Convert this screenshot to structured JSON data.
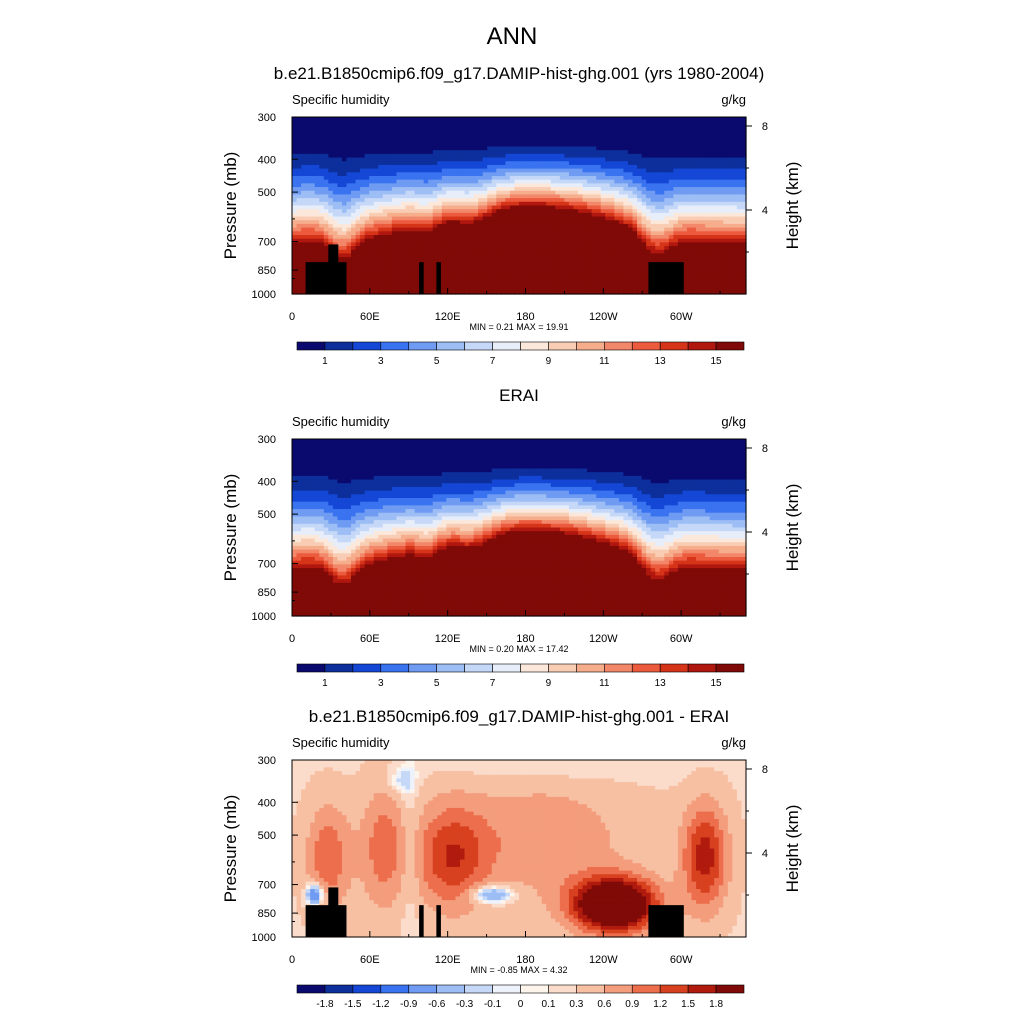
{
  "page_title": "ANN",
  "palettes": {
    "humidity": [
      "#0a0a6e",
      "#0d2f9c",
      "#1447d6",
      "#3a73f0",
      "#6f9bf2",
      "#9dbdf5",
      "#c6d8f8",
      "#e7eefa",
      "#fbe8da",
      "#f8cdb3",
      "#f6ad8c",
      "#f2876a",
      "#ec5b3e",
      "#d53419",
      "#b0170f",
      "#7f0a07"
    ],
    "difference": [
      "#0a0a6e",
      "#0d2f9c",
      "#1447d6",
      "#3a73f0",
      "#6f9bf2",
      "#9dbdf5",
      "#c6d8f8",
      "#eef2fa",
      "#fdf4ec",
      "#fbdccb",
      "#f7c0a3",
      "#f49d7d",
      "#ec6e4c",
      "#d8411f",
      "#b01b0e",
      "#7f0a07"
    ]
  },
  "chart_data": [
    {
      "type": "heatmap",
      "title": "b.e21.B1850cmip6.f09_g17.DAMIP-hist-ghg.001 (yrs 1980-2004)",
      "left_string": "Specific humidity",
      "right_string": "g/kg",
      "ylabel": "Pressure (mb)",
      "y2label": "Height (km)",
      "x_ticks": [
        "0",
        "60E",
        "120E",
        "180",
        "120W",
        "60W"
      ],
      "y_ticks": [
        "300",
        "400",
        "500",
        "700",
        "850",
        "1000"
      ],
      "y2_ticks": [
        "8",
        "4"
      ],
      "stats": "MIN =   0.21  MAX =  19.91",
      "colorbar_labels": [
        "1",
        "3",
        "5",
        "7",
        "9",
        "11",
        "13",
        "15"
      ],
      "palette": "humidity",
      "field": "humidity",
      "has_mask": true
    },
    {
      "type": "heatmap",
      "title": "ERAI",
      "left_string": "Specific humidity",
      "right_string": "g/kg",
      "ylabel": "Pressure (mb)",
      "y2label": "Height (km)",
      "x_ticks": [
        "0",
        "60E",
        "120E",
        "180",
        "120W",
        "60W"
      ],
      "y_ticks": [
        "300",
        "400",
        "500",
        "700",
        "850",
        "1000"
      ],
      "y2_ticks": [
        "8",
        "4"
      ],
      "stats": "MIN =   0.20  MAX =  17.42",
      "colorbar_labels": [
        "1",
        "3",
        "5",
        "7",
        "9",
        "11",
        "13",
        "15"
      ],
      "palette": "humidity",
      "field": "humidity",
      "has_mask": false
    },
    {
      "type": "heatmap",
      "title": "b.e21.B1850cmip6.f09_g17.DAMIP-hist-ghg.001 - ERAI",
      "left_string": "Specific humidity",
      "right_string": "g/kg",
      "ylabel": "Pressure (mb)",
      "y2label": "Height (km)",
      "x_ticks": [
        "0",
        "60E",
        "120E",
        "180",
        "120W",
        "60W"
      ],
      "y_ticks": [
        "300",
        "400",
        "500",
        "700",
        "850",
        "1000"
      ],
      "y2_ticks": [
        "8",
        "4"
      ],
      "stats": "MIN =  -0.85  MAX =   4.32",
      "colorbar_labels": [
        "-1.8",
        "-1.5",
        "-1.2",
        "-0.9",
        "-0.6",
        "-0.3",
        "-0.1",
        "0",
        "0.1",
        "0.3",
        "0.6",
        "0.9",
        "1.2",
        "1.5",
        "1.8"
      ],
      "palette": "difference",
      "field": "difference",
      "has_mask": true
    }
  ]
}
